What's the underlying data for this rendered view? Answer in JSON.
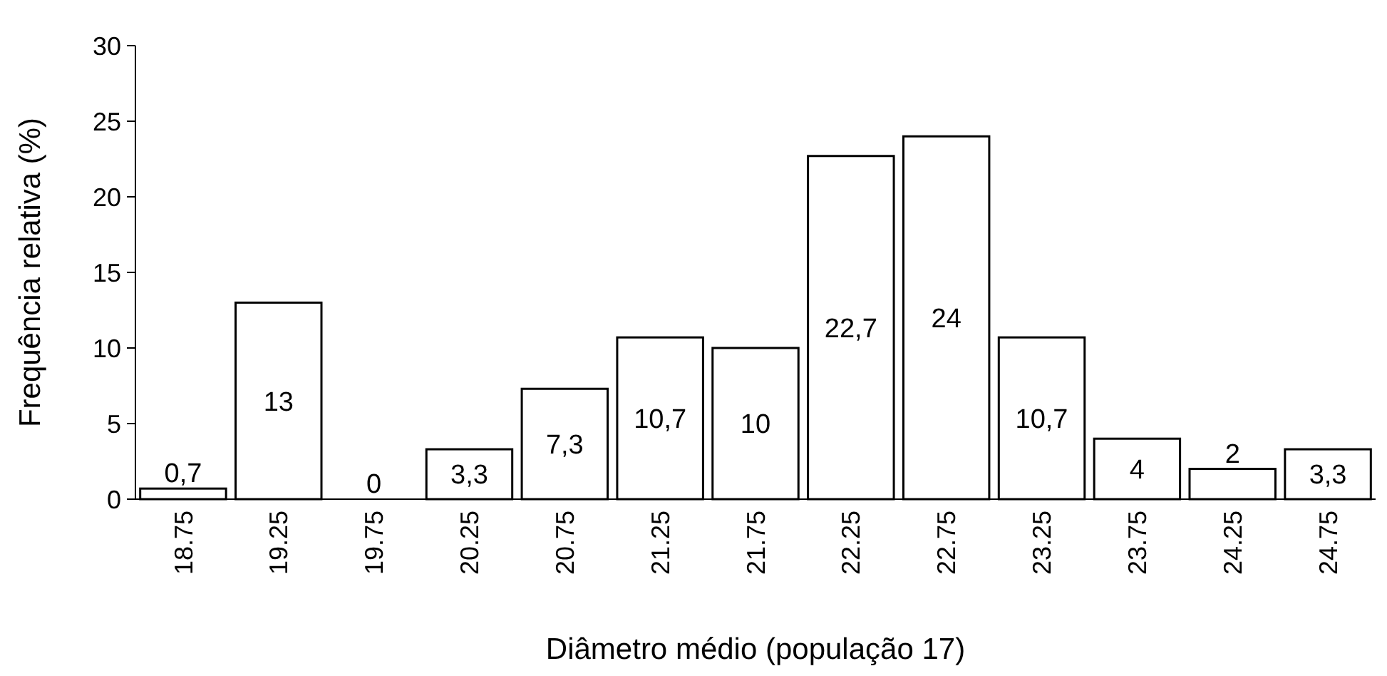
{
  "chart_data": {
    "type": "bar",
    "xlabel": "Diâmetro médio (população 17)",
    "ylabel": "Frequência relativa (%)",
    "categories": [
      "18.75",
      "19.25",
      "19.75",
      "20.25",
      "20.75",
      "21.25",
      "21.75",
      "22.25",
      "22.75",
      "23.25",
      "23.75",
      "24.25",
      "24.75"
    ],
    "values": [
      0.7,
      13,
      0,
      3.3,
      7.3,
      10.7,
      10,
      22.7,
      24,
      10.7,
      4,
      2,
      3.3
    ],
    "value_labels": [
      "0,7",
      "13",
      "0",
      "3,3",
      "7,3",
      "10,7",
      "10",
      "22,7",
      "24",
      "10,7",
      "4",
      "2",
      "3,3"
    ],
    "color": "#ffffff",
    "ylim": [
      0,
      30
    ],
    "yticks": [
      0,
      5,
      10,
      15,
      20,
      25,
      30
    ],
    "grid": false
  }
}
